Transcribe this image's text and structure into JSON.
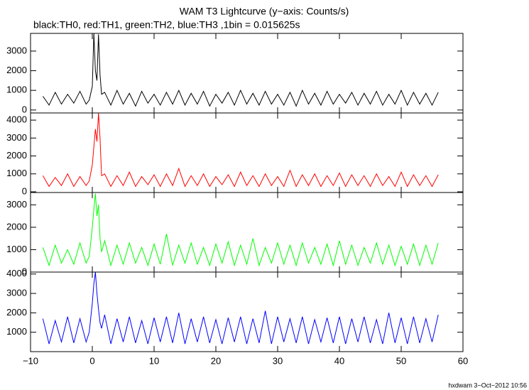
{
  "footer": "hxdwam  3−Oct−2012 10:56",
  "chart_data": [
    {
      "type": "line",
      "title": "WAM T3 Lightcurve (y−axis: Counts/s)",
      "subtitle": "black:TH0, red:TH1, green:TH2, blue:TH3 ,1bin = 0.015625s",
      "color": "#000000",
      "xlim": [
        -10,
        60
      ],
      "ylim": [
        -150,
        3900
      ],
      "yticks": [
        0,
        1000,
        2000,
        3000
      ],
      "x": [
        -8,
        -7,
        -6,
        -5,
        -4,
        -3,
        -2,
        -1,
        -0.5,
        0,
        0.25,
        0.5,
        0.75,
        1,
        1.25,
        1.5,
        2,
        3,
        4,
        5,
        6,
        7,
        8,
        9,
        10,
        11,
        12,
        13,
        14,
        15,
        16,
        17,
        18,
        19,
        20,
        21,
        22,
        23,
        24,
        25,
        26,
        27,
        28,
        29,
        30,
        31,
        32,
        33,
        34,
        35,
        36,
        37,
        38,
        39,
        40,
        41,
        42,
        43,
        44,
        45,
        46,
        47,
        48,
        49,
        50,
        51,
        52,
        53,
        54,
        55,
        56
      ],
      "values": [
        700,
        250,
        900,
        300,
        800,
        350,
        950,
        300,
        500,
        1200,
        3900,
        2000,
        1500,
        3850,
        1800,
        800,
        900,
        250,
        1000,
        300,
        850,
        200,
        950,
        350,
        800,
        250,
        900,
        300,
        1000,
        250,
        850,
        300,
        950,
        200,
        800,
        350,
        900,
        250,
        1000,
        300,
        850,
        250,
        950,
        300,
        800,
        250,
        900,
        200,
        1000,
        300,
        850,
        250,
        950,
        300,
        800,
        350,
        900,
        250,
        850,
        300,
        950,
        250,
        800,
        300,
        1000,
        250,
        900,
        300,
        850,
        250,
        900
      ]
    },
    {
      "type": "line",
      "color": "#ff0000",
      "xlim": [
        -10,
        60
      ],
      "ylim": [
        -40,
        4400
      ],
      "yticks": [
        0,
        1000,
        2000,
        3000,
        4000
      ],
      "x": [
        -8,
        -7,
        -6,
        -5,
        -4,
        -3,
        -2,
        -1,
        -0.5,
        0,
        0.25,
        0.5,
        0.75,
        1,
        1.25,
        1.5,
        2,
        3,
        4,
        5,
        6,
        7,
        8,
        9,
        10,
        11,
        12,
        13,
        14,
        15,
        16,
        17,
        18,
        19,
        20,
        21,
        22,
        23,
        24,
        25,
        26,
        27,
        28,
        29,
        30,
        31,
        32,
        33,
        34,
        35,
        36,
        37,
        38,
        39,
        40,
        41,
        42,
        43,
        44,
        45,
        46,
        47,
        48,
        49,
        50,
        51,
        52,
        53,
        54,
        55,
        56
      ],
      "values": [
        900,
        300,
        800,
        350,
        1000,
        300,
        850,
        350,
        600,
        1500,
        2500,
        3500,
        2800,
        4400,
        3000,
        900,
        1000,
        300,
        900,
        350,
        1100,
        300,
        850,
        400,
        950,
        300,
        1000,
        350,
        1300,
        300,
        900,
        350,
        1000,
        300,
        850,
        400,
        950,
        300,
        1100,
        350,
        900,
        300,
        1000,
        350,
        850,
        300,
        1200,
        300,
        950,
        350,
        1000,
        300,
        900,
        350,
        1050,
        300,
        950,
        350,
        900,
        300,
        1000,
        350,
        850,
        300,
        1100,
        300,
        950,
        350,
        900,
        300,
        950
      ]
    },
    {
      "type": "line",
      "color": "#00ff00",
      "xlim": [
        -10,
        60
      ],
      "ylim": [
        0,
        3550
      ],
      "yticks": [
        0,
        1000,
        2000,
        3000
      ],
      "x": [
        -8,
        -7,
        -6,
        -5,
        -4,
        -3,
        -2,
        -1,
        -0.5,
        0,
        0.25,
        0.5,
        0.75,
        1,
        1.25,
        1.5,
        2,
        3,
        4,
        5,
        6,
        7,
        8,
        9,
        10,
        11,
        12,
        13,
        14,
        15,
        16,
        17,
        18,
        19,
        20,
        21,
        22,
        23,
        24,
        25,
        26,
        27,
        28,
        29,
        30,
        31,
        32,
        33,
        34,
        35,
        36,
        37,
        38,
        39,
        40,
        41,
        42,
        43,
        44,
        45,
        46,
        47,
        48,
        49,
        50,
        51,
        52,
        53,
        54,
        55,
        56
      ],
      "values": [
        1100,
        300,
        1200,
        400,
        1000,
        350,
        1300,
        400,
        700,
        2000,
        2800,
        3500,
        2500,
        3000,
        1500,
        900,
        1400,
        300,
        1200,
        350,
        1300,
        400,
        1100,
        300,
        1250,
        350,
        1700,
        300,
        1200,
        400,
        1300,
        350,
        1100,
        300,
        1250,
        400,
        1350,
        300,
        1200,
        350,
        1500,
        300,
        1100,
        400,
        1300,
        350,
        1200,
        300,
        1300,
        400,
        1100,
        350,
        1250,
        300,
        1400,
        350,
        1200,
        300,
        1100,
        400,
        1300,
        350,
        1200,
        300,
        1150,
        350,
        1250,
        300,
        1200,
        350,
        1300
      ]
    },
    {
      "type": "line",
      "color": "#0000ff",
      "xlim": [
        -10,
        60
      ],
      "ylim": [
        0,
        4100
      ],
      "yticks": [
        1000,
        2000,
        3000,
        4000
      ],
      "xticks": [
        {
          "value": -10,
          "label": "−10"
        },
        0,
        10,
        20,
        30,
        40,
        50,
        60
      ],
      "x": [
        -8,
        -7,
        -6,
        -5,
        -4,
        -3,
        -2,
        -1,
        -0.5,
        0,
        0.25,
        0.5,
        0.75,
        1,
        1.25,
        1.5,
        2,
        3,
        4,
        5,
        6,
        7,
        8,
        9,
        10,
        11,
        12,
        13,
        14,
        15,
        16,
        17,
        18,
        19,
        20,
        21,
        22,
        23,
        24,
        25,
        26,
        27,
        28,
        29,
        30,
        31,
        32,
        33,
        34,
        35,
        36,
        37,
        38,
        39,
        40,
        41,
        42,
        43,
        44,
        45,
        46,
        47,
        48,
        49,
        50,
        51,
        52,
        53,
        54,
        55,
        56
      ],
      "values": [
        1700,
        400,
        1600,
        500,
        1800,
        450,
        1700,
        500,
        1000,
        2500,
        3500,
        4100,
        3000,
        2200,
        1500,
        1200,
        1900,
        400,
        1700,
        500,
        1800,
        450,
        1600,
        400,
        1750,
        500,
        1800,
        450,
        2000,
        400,
        1700,
        500,
        1800,
        450,
        1650,
        400,
        1750,
        500,
        1800,
        400,
        1700,
        450,
        2100,
        400,
        1800,
        500,
        1700,
        450,
        1800,
        400,
        1650,
        500,
        1750,
        450,
        1800,
        400,
        1700,
        500,
        1800,
        450,
        1650,
        400,
        2000,
        450,
        1750,
        400,
        1800,
        450,
        1700,
        500,
        1900
      ]
    }
  ]
}
